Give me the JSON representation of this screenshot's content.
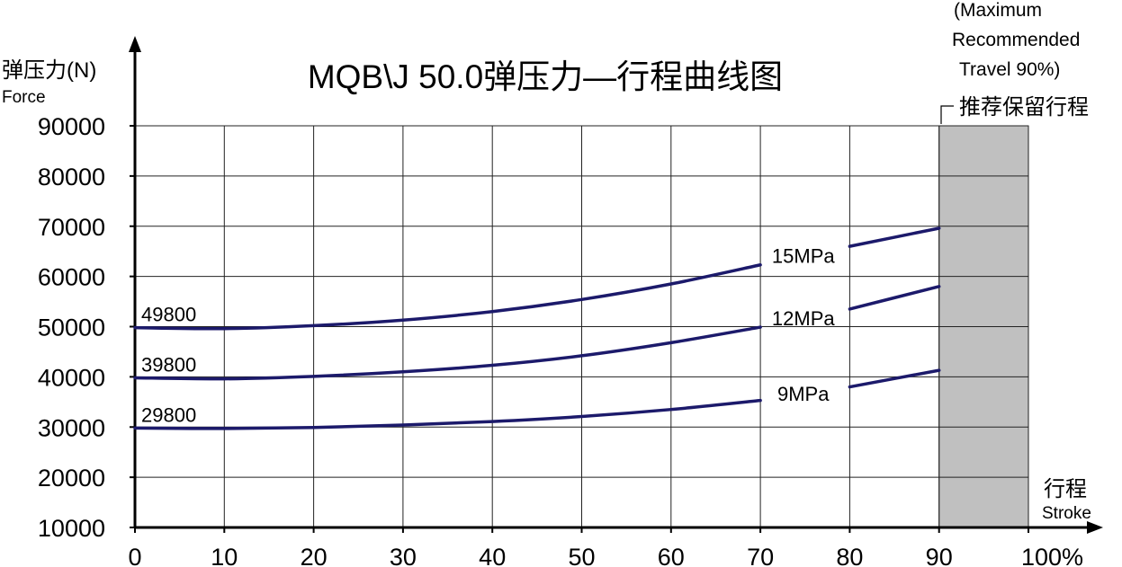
{
  "chart_data": {
    "type": "line",
    "title": "MQB\\J 50.0弹压力—行程曲线图",
    "ylabel": "弹压力(N)",
    "ylabel_en": "Force",
    "xlabel": "行程",
    "xlabel_en": "Stroke",
    "ylim": [
      10000,
      90000
    ],
    "xlim": [
      0,
      100
    ],
    "x_ticks": [
      "0",
      "10",
      "20",
      "30",
      "40",
      "50",
      "60",
      "70",
      "80",
      "90",
      "100%"
    ],
    "y_ticks": [
      "90000",
      "80000",
      "70000",
      "60000",
      "50000",
      "40000",
      "30000",
      "20000",
      "10000"
    ],
    "grid": true,
    "recommended_zone": {
      "x_range": [
        90,
        100
      ],
      "label": "推荐保留行程",
      "note_lines": [
        "(Maximum",
        "Recommended",
        "Travel 90%)"
      ],
      "color": "#c0c0c0"
    },
    "series": [
      {
        "name": "15MPa",
        "start_label": "49800",
        "x": [
          0,
          10,
          20,
          30,
          40,
          50,
          60,
          70,
          80,
          90
        ],
        "values": [
          49800,
          49600,
          50200,
          51300,
          53000,
          55400,
          58500,
          62300,
          66000,
          69600
        ]
      },
      {
        "name": "12MPa",
        "start_label": "39800",
        "x": [
          0,
          10,
          20,
          30,
          40,
          50,
          60,
          70,
          80,
          90
        ],
        "values": [
          39800,
          39600,
          40100,
          41000,
          42300,
          44200,
          46800,
          49900,
          53500,
          58000
        ]
      },
      {
        "name": "9MPa",
        "start_label": "29800",
        "x": [
          0,
          10,
          20,
          30,
          40,
          50,
          60,
          70,
          80,
          90
        ],
        "values": [
          29800,
          29700,
          29900,
          30400,
          31100,
          32100,
          33500,
          35300,
          38000,
          41300
        ]
      }
    ],
    "colors": {
      "line": "#1c1a6b",
      "grid": "#222222",
      "axis": "#000000"
    }
  }
}
